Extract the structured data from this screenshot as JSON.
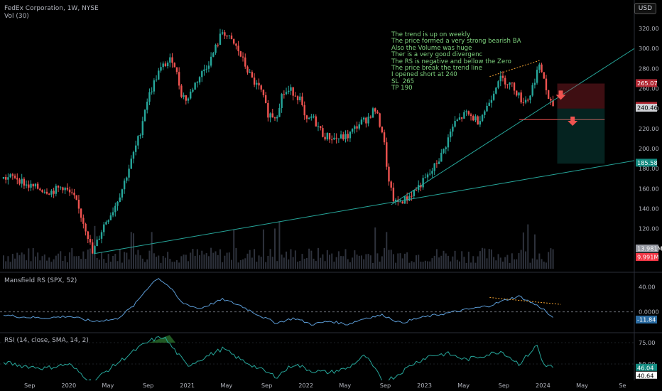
{
  "header": {
    "symbol_line": "FedEx Corporation, 1W, NYSE",
    "volume_label": "Vol (30)",
    "currency": "USD"
  },
  "annotation_lines": [
    "The trend is up on weekly",
    "The price formed a very strong bearish BA",
    "Also the Volume was huge",
    "Ther is a very good divergenc",
    "The RS is negative and bellow the Zero",
    "The price break the trend line",
    "I opened short at 240",
    "SL  265",
    "TP 190"
  ],
  "price_tags": [
    {
      "label": "265.07",
      "value": 265.07,
      "bg": "#b22833"
    },
    {
      "label": "242.36",
      "value": 242.36,
      "bg": "#b22833"
    },
    {
      "label": "240.46",
      "value": 240.46,
      "bg": "#cfd1d6",
      "fg": "#000000"
    },
    {
      "label": "185.58",
      "value": 185.58,
      "bg": "#138a80"
    }
  ],
  "volume_tags": [
    {
      "label": "13.981M",
      "bg": "#9598a1"
    },
    {
      "label": "9.991M",
      "bg": "#f23645"
    }
  ],
  "colors": {
    "up": "#26a69a",
    "down": "#ef5350",
    "line": "#5b9bd5",
    "trend": "#26a69a",
    "divergence": "#f0a030",
    "rsi_fill": "#2e7d32"
  },
  "chart_data": [
    {
      "type": "candlestick",
      "title": "FedEx Corporation, 1W, NYSE",
      "ylim": [
        80,
        330
      ],
      "y_ticks": [
        "100.00",
        "120.00",
        "140.00",
        "160.00",
        "180.00",
        "200.00",
        "220.00",
        "240.00",
        "260.00",
        "280.00",
        "300.00",
        "320.00"
      ],
      "y_tick_values": [
        100,
        120,
        140,
        160,
        180,
        200,
        220,
        240,
        260,
        280,
        300,
        320
      ],
      "x_ticks": [
        "Sep",
        "2020",
        "May",
        "Sep",
        "2021",
        "May",
        "Sep",
        "2022",
        "May",
        "Sep",
        "2023",
        "May",
        "Sep",
        "2024",
        "May",
        "Se"
      ],
      "x_tick_dates": [
        2019.67,
        2020.0,
        2020.33,
        2020.67,
        2021.0,
        2021.33,
        2021.67,
        2022.0,
        2022.33,
        2022.67,
        2023.0,
        2023.33,
        2023.67,
        2024.0,
        2024.33,
        2024.67
      ],
      "xlim": [
        2019.42,
        2024.77
      ],
      "approx_weekly_close": {
        "dates": [
          2019.45,
          2019.55,
          2019.65,
          2019.75,
          2019.85,
          2019.95,
          2020.05,
          2020.15,
          2020.2,
          2020.25,
          2020.3,
          2020.38,
          2020.45,
          2020.52,
          2020.6,
          2020.65,
          2020.7,
          2020.75,
          2020.8,
          2020.88,
          2020.95,
          2021.0,
          2021.05,
          2021.12,
          2021.2,
          2021.3,
          2021.35,
          2021.42,
          2021.5,
          2021.55,
          2021.62,
          2021.68,
          2021.75,
          2021.8,
          2021.88,
          2021.95,
          2022.0,
          2022.05,
          2022.15,
          2022.25,
          2022.35,
          2022.45,
          2022.52,
          2022.58,
          2022.65,
          2022.7,
          2022.75,
          2022.85,
          2022.95,
          2023.05,
          2023.15,
          2023.25,
          2023.35,
          2023.45,
          2023.52,
          2023.58,
          2023.62,
          2023.68,
          2023.75,
          2023.82,
          2023.88,
          2023.92,
          2023.96,
          2024.0,
          2024.05,
          2024.09
        ],
        "close": [
          170,
          172,
          163,
          160,
          157,
          162,
          150,
          118,
          95,
          110,
          125,
          140,
          160,
          185,
          215,
          245,
          260,
          275,
          283,
          290,
          255,
          248,
          262,
          275,
          290,
          318,
          310,
          300,
          280,
          268,
          258,
          235,
          232,
          255,
          258,
          250,
          225,
          232,
          213,
          210,
          212,
          225,
          230,
          240,
          215,
          165,
          145,
          150,
          162,
          175,
          195,
          225,
          235,
          228,
          240,
          256,
          270,
          268,
          262,
          248,
          250,
          265,
          282,
          275,
          245,
          243
        ],
        "note": "approximate values read from the weekly candle chart"
      },
      "volume_millions_latest": [
        13.981,
        9.991
      ],
      "trade_setup": {
        "entry": 240,
        "stop_loss": 265,
        "take_profit": 190,
        "direction": "short"
      },
      "tagged_levels": [
        265.07,
        242.36,
        240.46,
        185.58
      ]
    },
    {
      "type": "line",
      "title": "Mansfield RS (SPX, 52)",
      "ylim": [
        -30,
        60
      ],
      "y_ticks": [
        "40.00",
        "0.0000",
        "-11.84"
      ],
      "y_tick_values": [
        40,
        0,
        -11.84
      ],
      "latest_value": -11.84,
      "approx_values": {
        "dates": [
          2019.45,
          2019.6,
          2019.8,
          2020.0,
          2020.2,
          2020.4,
          2020.55,
          2020.65,
          2020.75,
          2020.85,
          2020.95,
          2021.1,
          2021.3,
          2021.45,
          2021.6,
          2021.75,
          2021.9,
          2022.05,
          2022.2,
          2022.35,
          2022.5,
          2022.65,
          2022.8,
          2022.95,
          2023.1,
          2023.25,
          2023.4,
          2023.55,
          2023.7,
          2023.8,
          2023.9,
          2024.0,
          2024.09
        ],
        "values": [
          -5,
          -8,
          -10,
          -7,
          -15,
          -12,
          10,
          35,
          55,
          40,
          15,
          5,
          20,
          10,
          -5,
          -18,
          -10,
          -20,
          -15,
          -20,
          -10,
          -5,
          -18,
          -10,
          -5,
          0,
          5,
          10,
          20,
          25,
          15,
          5,
          -11.84
        ]
      }
    },
    {
      "type": "line",
      "title": "RSI (14, close, SMA, 14, 2)",
      "ylim": [
        20,
        85
      ],
      "y_ticks": [
        "75.00",
        "50.00",
        "25.00"
      ],
      "y_tick_values": [
        75,
        50,
        25
      ],
      "latest_values": [
        46.04,
        40.64
      ],
      "latest_labels": [
        "46.04",
        "40.64"
      ],
      "approx_values": {
        "dates": [
          2019.45,
          2019.6,
          2019.8,
          2020.0,
          2020.2,
          2020.3,
          2020.45,
          2020.6,
          2020.7,
          2020.8,
          2020.9,
          2021.0,
          2021.15,
          2021.3,
          2021.45,
          2021.6,
          2021.75,
          2021.9,
          2022.05,
          2022.2,
          2022.35,
          2022.5,
          2022.65,
          2022.75,
          2022.9,
          2023.05,
          2023.2,
          2023.35,
          2023.5,
          2023.65,
          2023.8,
          2023.95,
          2024.0,
          2024.09
        ],
        "values": [
          52,
          48,
          45,
          50,
          28,
          40,
          55,
          70,
          78,
          82,
          65,
          48,
          58,
          68,
          55,
          45,
          35,
          50,
          42,
          40,
          45,
          60,
          30,
          35,
          50,
          60,
          62,
          55,
          60,
          65,
          50,
          72,
          50,
          46
        ]
      }
    }
  ]
}
